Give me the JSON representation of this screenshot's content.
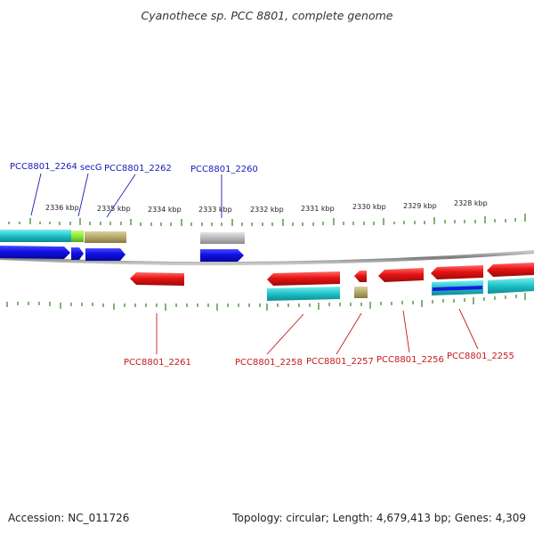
{
  "title": "Cyanothece sp. PCC 8801, complete genome",
  "accession": "Accession: NC_011726",
  "summary": "Topology: circular; Length: 4,679,413 bp; Genes: 4,309",
  "colors": {
    "forward_cds": "#1a1ae0",
    "reverse_cds": "#e01a1a",
    "cyan_cog": "#20c4c8",
    "khaki_cog": "#b8ac70",
    "green_cog": "#8ee83a",
    "grey_cog": "#b4b4b4",
    "backbone": "#8a8a8a",
    "ticks": "#3d8a2a",
    "top_label": "#1a1ab8",
    "bottom_label": "#c41a1a"
  },
  "scale_labels": [
    "2336 kbp",
    "2335 kbp",
    "2334 kbp",
    "2333 kbp",
    "2332 kbp",
    "2331 kbp",
    "2330 kbp",
    "2329 kbp",
    "2328 kbp"
  ],
  "top_gene_labels": [
    "PCC8801_2264",
    "secG",
    "PCC8801_2262",
    "PCC8801_2260"
  ],
  "bottom_gene_labels": [
    "PCC8801_2261",
    "PCC8801_2258",
    "PCC8801_2257",
    "PCC8801_2256",
    "PCC8801_2255"
  ]
}
